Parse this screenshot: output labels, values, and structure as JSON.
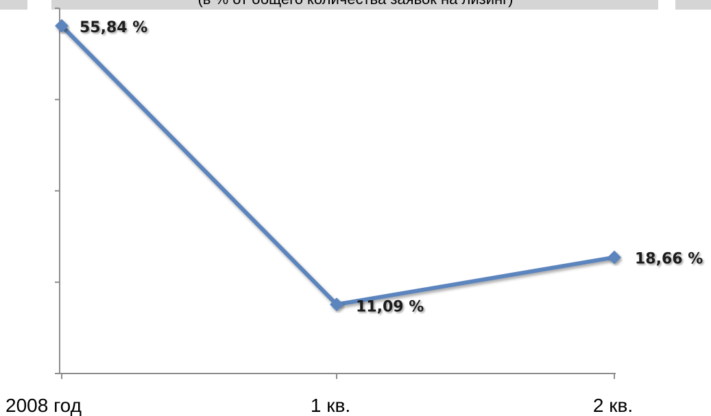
{
  "chart_data": {
    "type": "line",
    "title": "",
    "subtitle": "(в % от общего количества заявок на лизинг)",
    "xlabel": "",
    "ylabel": "",
    "categories": [
      "2008 год",
      "1 кв.",
      "2 кв."
    ],
    "series": [
      {
        "values": [
          55.84,
          11.09,
          18.66
        ],
        "labels": [
          "55,84 %",
          "11,09 %",
          "18,66 %"
        ],
        "color": "#5b84bd"
      }
    ],
    "ylim": [
      0,
      60
    ],
    "y_tick_labels": false,
    "grid": false,
    "legend": "none"
  }
}
